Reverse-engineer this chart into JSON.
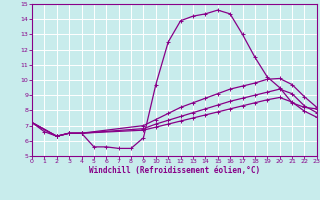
{
  "xlabel": "Windchill (Refroidissement éolien,°C)",
  "xlim": [
    0,
    23
  ],
  "ylim": [
    5,
    15
  ],
  "yticks": [
    5,
    6,
    7,
    8,
    9,
    10,
    11,
    12,
    13,
    14,
    15
  ],
  "xticks": [
    0,
    1,
    2,
    3,
    4,
    5,
    6,
    7,
    8,
    9,
    10,
    11,
    12,
    13,
    14,
    15,
    16,
    17,
    18,
    19,
    20,
    21,
    22,
    23
  ],
  "bg_color": "#c8ecec",
  "grid_color": "#ffffff",
  "line_color": "#880088",
  "line1_x": [
    0,
    1,
    2,
    3,
    4,
    5,
    6,
    7,
    8,
    9,
    10,
    11,
    12,
    13,
    14,
    15,
    16,
    17,
    18,
    19,
    20,
    21,
    22,
    23
  ],
  "line1_y": [
    7.2,
    6.6,
    6.3,
    6.5,
    6.5,
    5.6,
    5.6,
    5.5,
    5.5,
    6.2,
    9.7,
    12.5,
    13.9,
    14.2,
    14.35,
    14.6,
    14.35,
    13.0,
    11.5,
    10.2,
    9.5,
    8.5,
    8.2,
    8.1
  ],
  "line2_x": [
    0,
    2,
    3,
    4,
    9,
    10,
    11,
    12,
    13,
    14,
    15,
    16,
    17,
    18,
    19,
    20,
    21,
    22,
    23
  ],
  "line2_y": [
    7.2,
    6.3,
    6.5,
    6.5,
    7.0,
    7.4,
    7.8,
    8.2,
    8.5,
    8.8,
    9.1,
    9.4,
    9.6,
    9.8,
    10.05,
    10.1,
    9.7,
    8.9,
    8.2
  ],
  "line3_x": [
    0,
    2,
    3,
    4,
    9,
    10,
    11,
    12,
    13,
    14,
    15,
    16,
    17,
    18,
    19,
    20,
    21,
    22,
    23
  ],
  "line3_y": [
    7.2,
    6.3,
    6.5,
    6.5,
    6.8,
    7.1,
    7.35,
    7.6,
    7.85,
    8.1,
    8.35,
    8.6,
    8.8,
    9.0,
    9.2,
    9.4,
    9.1,
    8.3,
    7.85
  ],
  "line4_x": [
    0,
    2,
    3,
    4,
    9,
    10,
    11,
    12,
    13,
    14,
    15,
    16,
    17,
    18,
    19,
    20,
    21,
    22,
    23
  ],
  "line4_y": [
    7.2,
    6.3,
    6.5,
    6.5,
    6.7,
    6.9,
    7.1,
    7.3,
    7.5,
    7.7,
    7.9,
    8.1,
    8.3,
    8.5,
    8.7,
    8.85,
    8.55,
    7.95,
    7.55
  ]
}
